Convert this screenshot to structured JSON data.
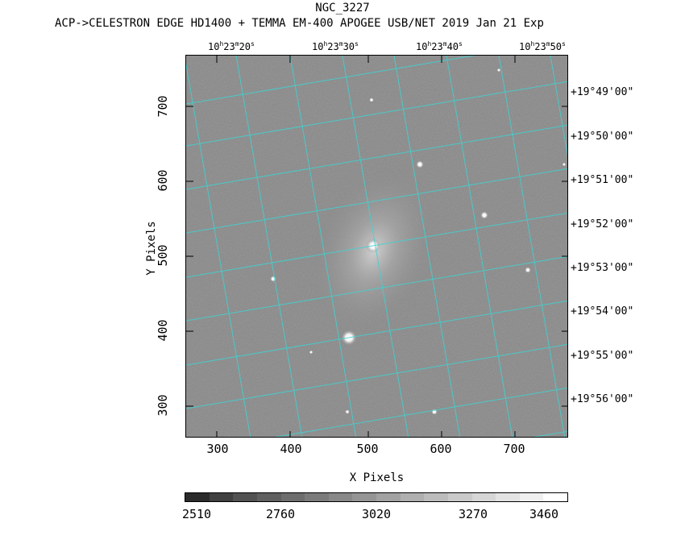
{
  "title": "NGC_3227",
  "subtitle": "ACP->CELESTRON EDGE HD1400 + TEMMA EM-400 APOGEE USB/NET   2019 Jan 21    Exp",
  "ra_labels": [
    {
      "h": "10",
      "m": "23",
      "s": "20"
    },
    {
      "h": "10",
      "m": "23",
      "s": "30"
    },
    {
      "h": "10",
      "m": "23",
      "s": "40"
    },
    {
      "h": "10",
      "m": "23",
      "s": "50"
    }
  ],
  "ra_units": {
    "h": "h",
    "m": "m",
    "s": "s"
  },
  "dec_labels": [
    "+19°49'00\"",
    "+19°50'00\"",
    "+19°51'00\"",
    "+19°52'00\"",
    "+19°53'00\"",
    "+19°54'00\"",
    "+19°55'00\"",
    "+19°56'00\""
  ],
  "x_ticks": [
    "300",
    "400",
    "500",
    "600",
    "700"
  ],
  "y_ticks": [
    "700",
    "600",
    "500",
    "400",
    "300"
  ],
  "xlabel": "X Pixels",
  "ylabel": "Y Pixels",
  "colorbar_labels": [
    "2510",
    "2760",
    "3020",
    "3270",
    "3460"
  ],
  "colors": {
    "grid": "#3fd3d3",
    "sky": "#878787"
  }
}
